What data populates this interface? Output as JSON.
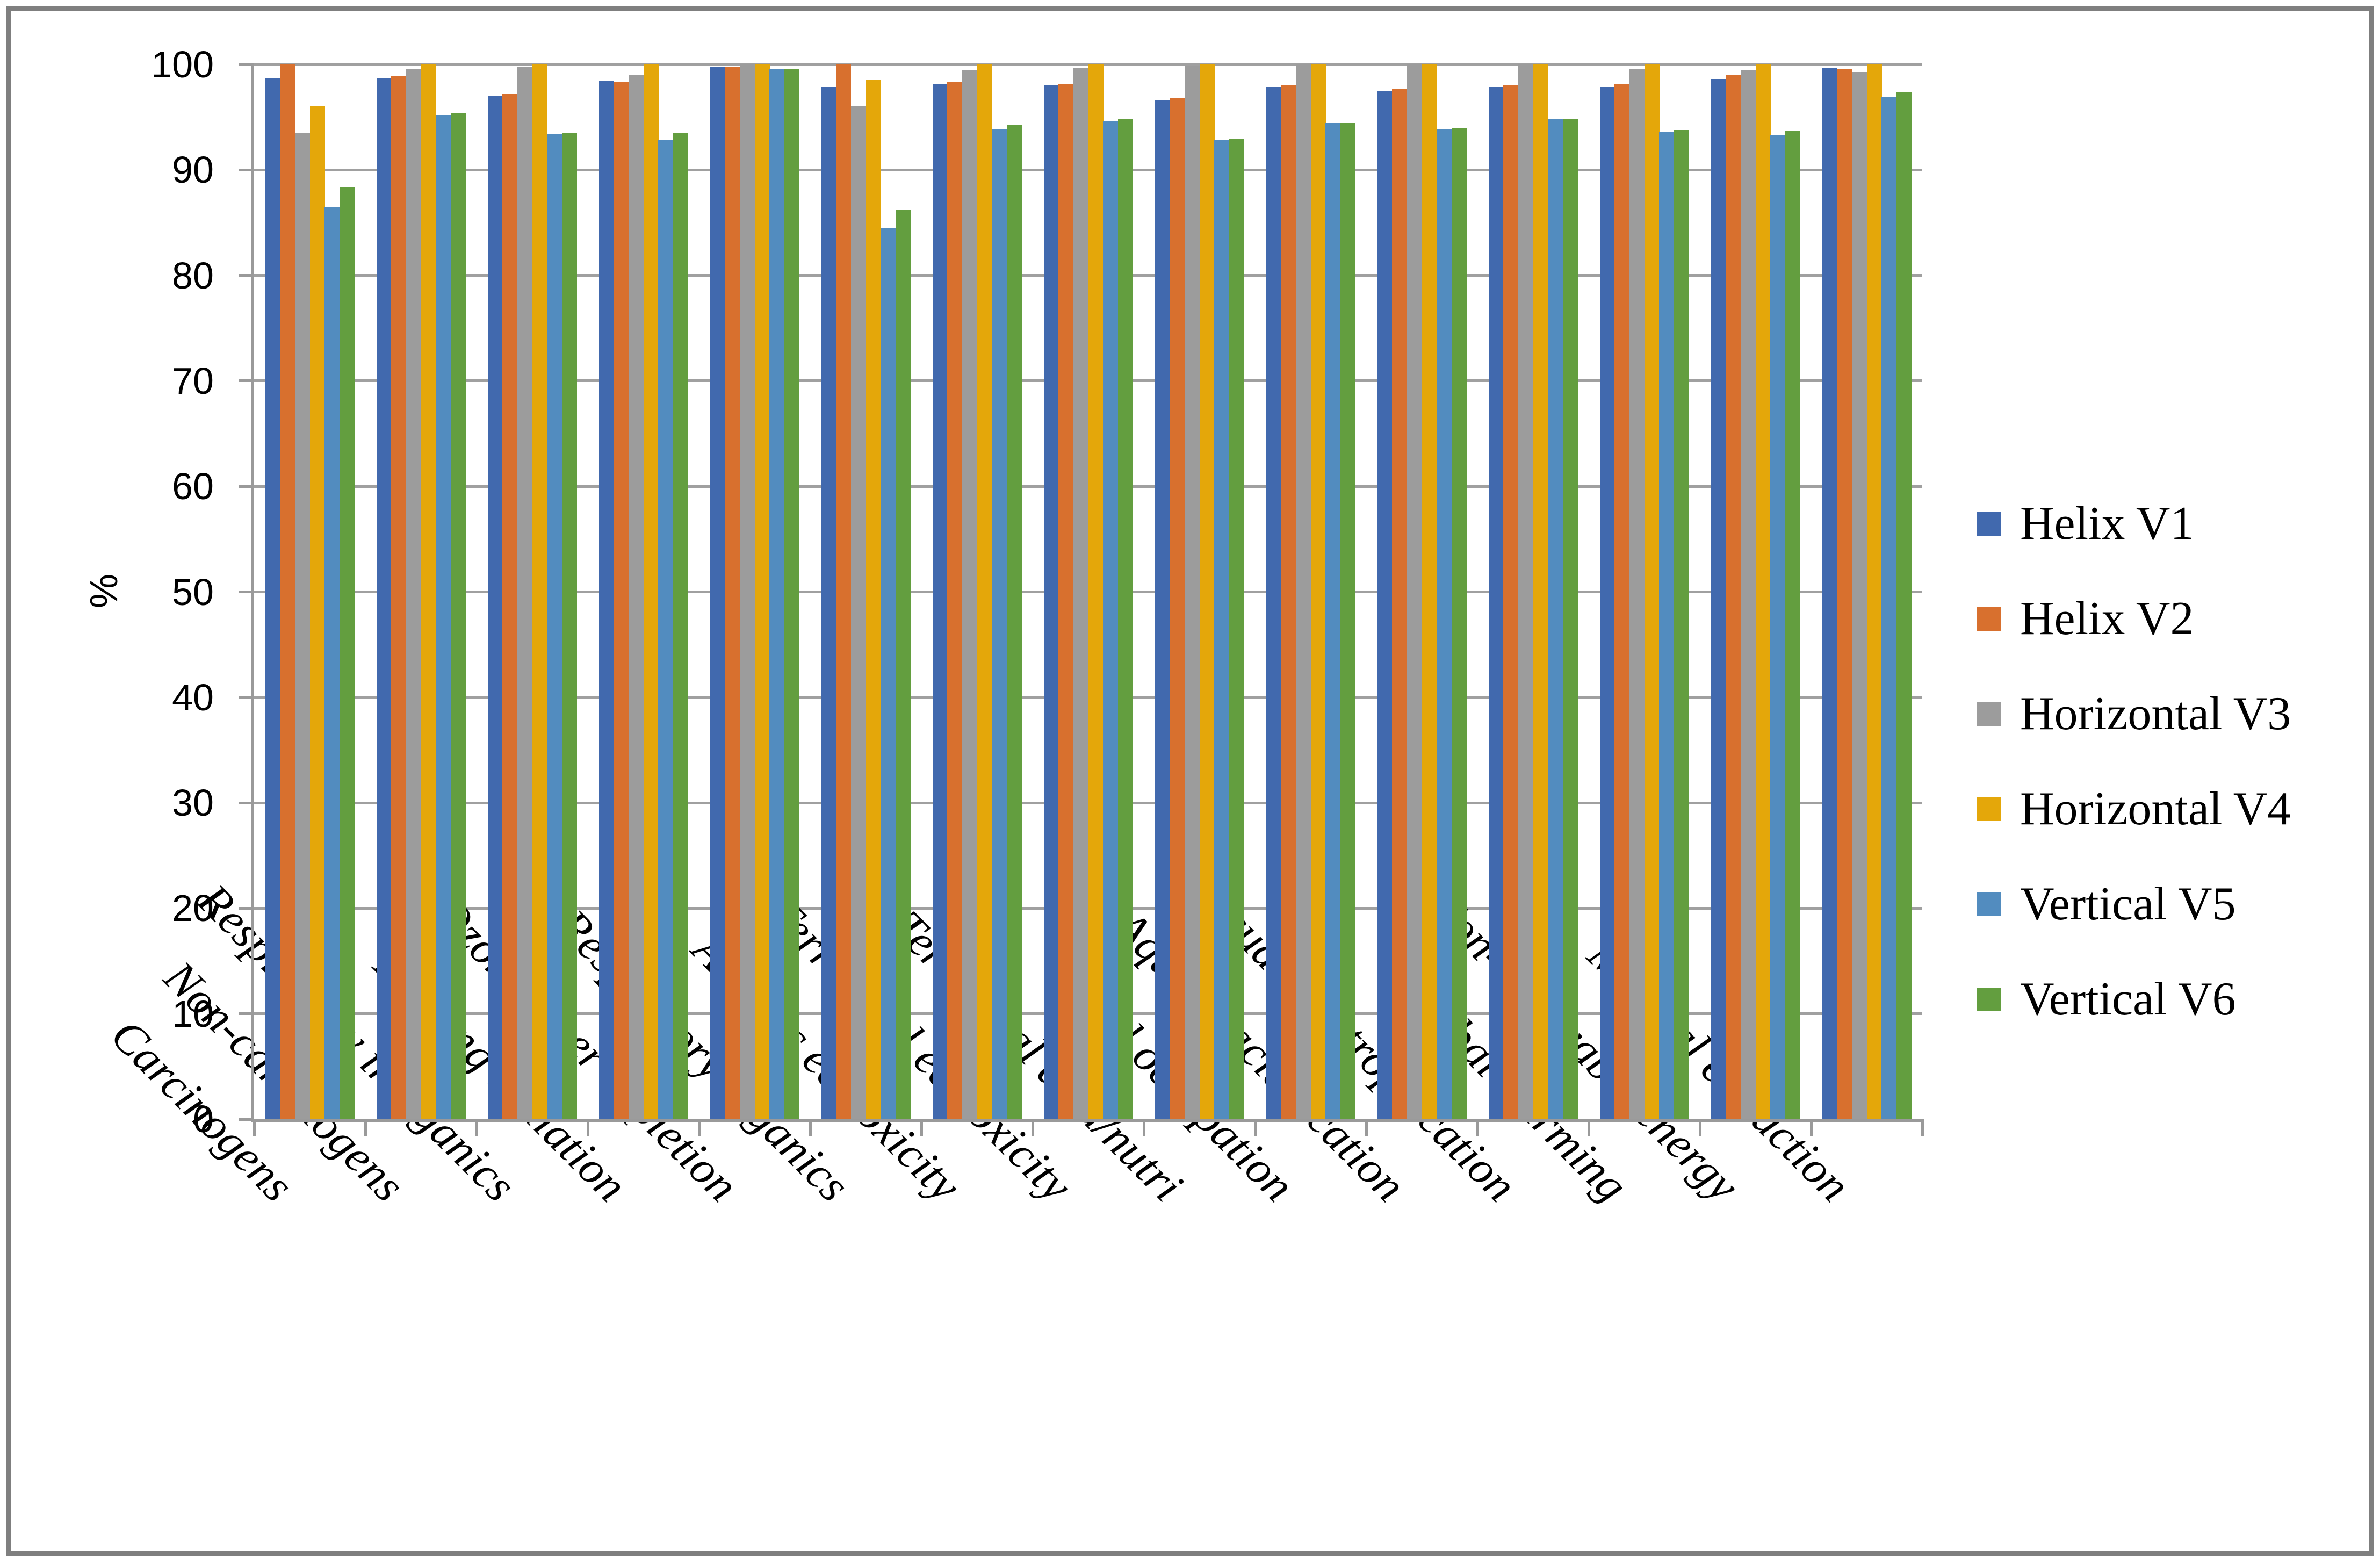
{
  "figure": {
    "background": "#ffffff",
    "border_color": "#7f7f7f"
  },
  "axis_colors": {
    "gridline": "#a0a0a0",
    "axis": "#9a9a9a",
    "text": "#000000"
  },
  "chart_data": {
    "type": "bar",
    "title": "",
    "xlabel": "",
    "ylabel": "%",
    "ylim": [
      0,
      100
    ],
    "ytick_step": 10,
    "yticks": [
      0,
      10,
      20,
      30,
      40,
      50,
      60,
      70,
      80,
      90,
      100
    ],
    "grid": true,
    "legend_position": "right",
    "categories": [
      "Carcinogens",
      "Non-carcinogens",
      "Respiratory inorganics",
      "Ionizing radiation",
      "Ozone layer depletion",
      "Respiratory organics",
      "Aquatic ecotoxicity",
      "Terrestrial ecotoxicity",
      "Terrestrial acid/nutri",
      "Land occupation",
      "Aquatic acidification",
      "Aquatic eutrophication",
      "Global warming",
      "Non-renewable energy",
      "Mineral extraction"
    ],
    "series": [
      {
        "name": "Helix V1",
        "color": "#4169ae",
        "values": [
          98.7,
          98.7,
          97.0,
          98.4,
          99.8,
          97.9,
          98.1,
          98.0,
          96.6,
          97.9,
          97.5,
          97.9,
          97.9,
          98.6,
          99.7
        ]
      },
      {
        "name": "Helix V2",
        "color": "#d8702e",
        "values": [
          100,
          98.9,
          97.2,
          98.3,
          99.8,
          100,
          98.3,
          98.1,
          96.8,
          98.0,
          97.7,
          98.0,
          98.1,
          99.0,
          99.6
        ]
      },
      {
        "name": "Horizontal V3",
        "color": "#9c9c9c",
        "values": [
          93.5,
          99.6,
          99.8,
          99.0,
          100,
          96.1,
          99.5,
          99.7,
          99.9,
          100,
          100,
          100,
          99.6,
          99.5,
          99.3
        ]
      },
      {
        "name": "Horizontal V4",
        "color": "#e4a70a",
        "values": [
          96.1,
          100,
          100,
          100,
          100,
          98.5,
          100,
          100,
          100,
          100,
          100,
          100,
          100,
          100,
          100
        ]
      },
      {
        "name": "Vertical V5",
        "color": "#528cbf",
        "values": [
          86.5,
          95.2,
          93.4,
          92.8,
          99.6,
          84.5,
          93.9,
          94.6,
          92.8,
          94.5,
          93.9,
          94.8,
          93.6,
          93.3,
          96.9
        ]
      },
      {
        "name": "Vertical V6",
        "color": "#639e3f",
        "values": [
          88.4,
          95.4,
          93.5,
          93.5,
          99.6,
          86.2,
          94.3,
          94.8,
          92.9,
          94.5,
          94.0,
          94.8,
          93.8,
          93.7,
          97.4
        ]
      }
    ]
  }
}
